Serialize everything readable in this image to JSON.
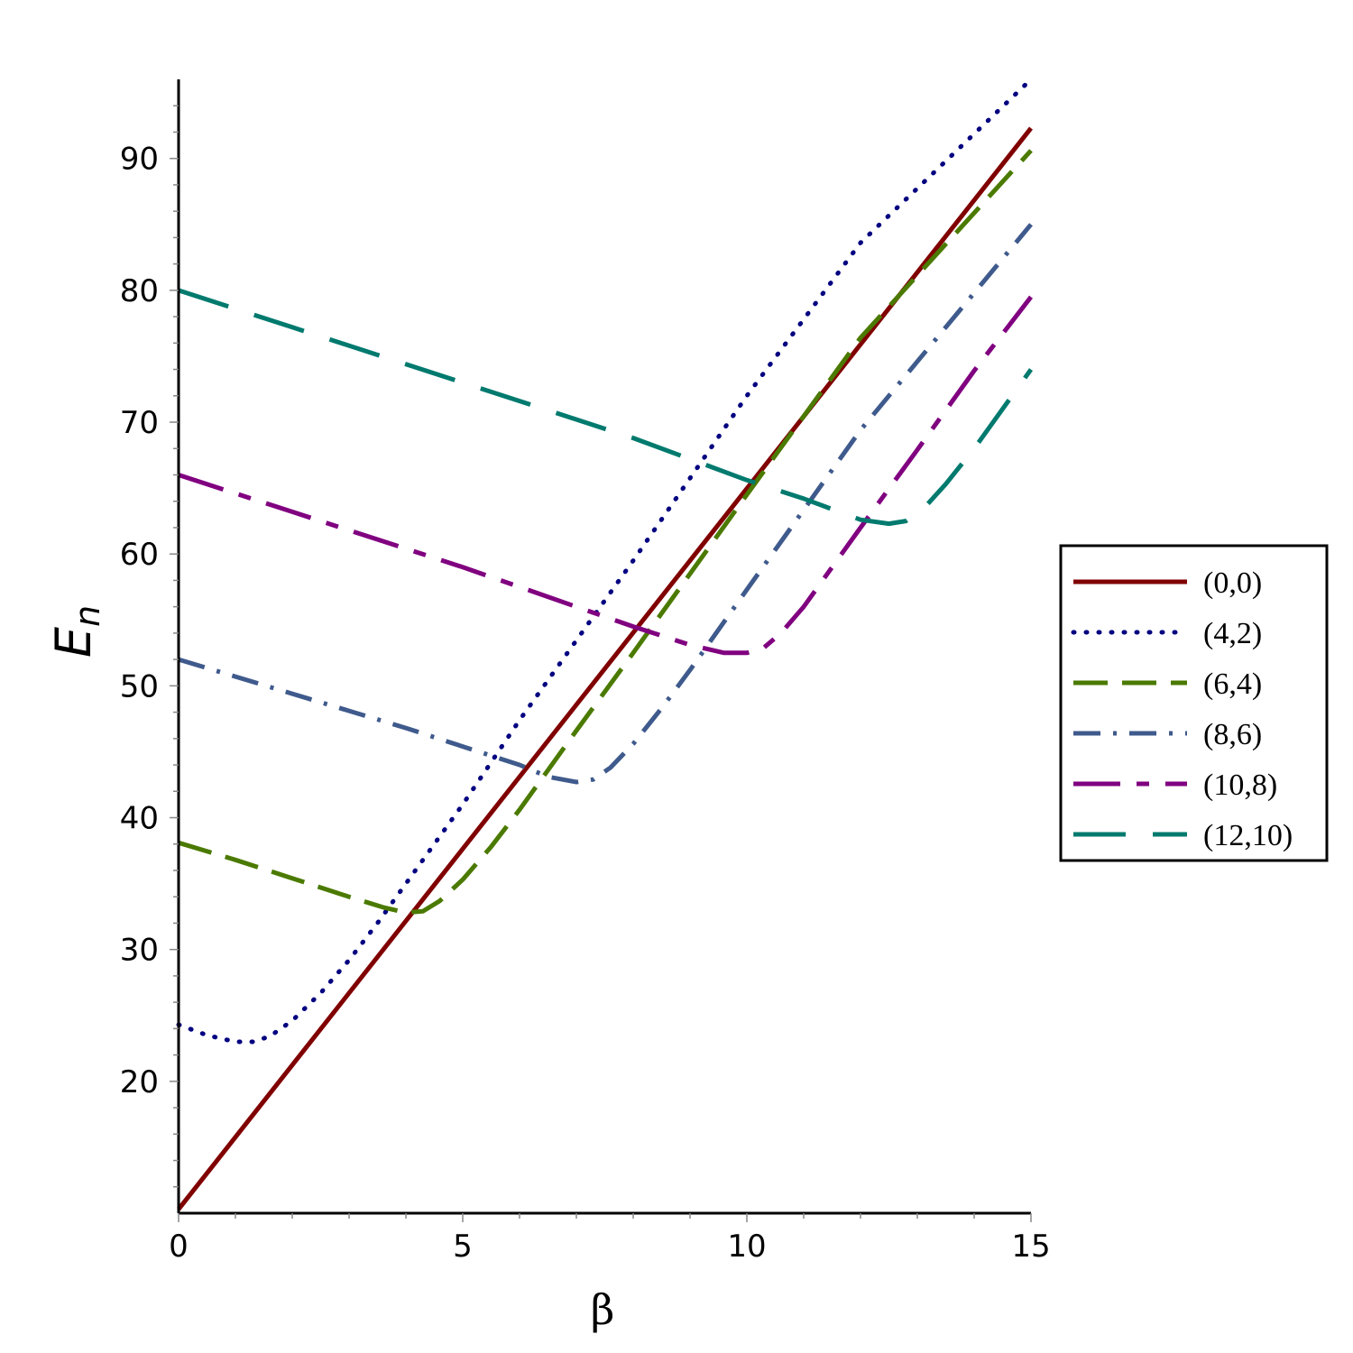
{
  "chart_data": {
    "type": "line",
    "title": "",
    "xlabel": "β",
    "ylabel": {
      "main": "E",
      "subscript": "n"
    },
    "xlim": [
      0,
      15
    ],
    "ylim": [
      10,
      96
    ],
    "xticks": [
      0,
      5,
      10,
      15
    ],
    "yticks": [
      20,
      30,
      40,
      50,
      60,
      70,
      80,
      90
    ],
    "grid": false,
    "legend_position": "right",
    "series": [
      {
        "name": "(0,0)",
        "color": "#800000",
        "dash": "solid",
        "points": [
          [
            0,
            10.3
          ],
          [
            15,
            92.3
          ]
        ]
      },
      {
        "name": "(4,2)",
        "color": "#000080",
        "dash": "dotted",
        "points": [
          [
            0,
            24.3
          ],
          [
            0.5,
            23.5
          ],
          [
            1.0,
            23.0
          ],
          [
            1.3,
            23.0
          ],
          [
            1.6,
            23.4
          ],
          [
            2.0,
            24.6
          ],
          [
            2.5,
            26.7
          ],
          [
            3.0,
            29.2
          ],
          [
            3.5,
            32.0
          ],
          [
            4.0,
            35.0
          ],
          [
            5.0,
            41.0
          ],
          [
            6.0,
            47.4
          ],
          [
            8.0,
            59.5
          ],
          [
            10.0,
            72.0
          ],
          [
            12.0,
            83.6
          ],
          [
            15.0,
            96.0
          ]
        ]
      },
      {
        "name": "(6,4)",
        "color": "#4B7A00",
        "dash": "long-dash",
        "points": [
          [
            0,
            38.1
          ],
          [
            1.0,
            36.8
          ],
          [
            2.0,
            35.4
          ],
          [
            3.0,
            34.0
          ],
          [
            3.6,
            33.2
          ],
          [
            4.0,
            32.8
          ],
          [
            4.3,
            32.9
          ],
          [
            4.6,
            33.7
          ],
          [
            5.0,
            35.3
          ],
          [
            5.5,
            37.8
          ],
          [
            6.0,
            40.6
          ],
          [
            7.0,
            46.6
          ],
          [
            8.0,
            52.5
          ],
          [
            10.0,
            64.5
          ],
          [
            12.0,
            76.4
          ],
          [
            15.0,
            90.6
          ]
        ]
      },
      {
        "name": "(8,6)",
        "color": "#3F5A8C",
        "dash": "dash-dot",
        "points": [
          [
            0,
            52.0
          ],
          [
            1.0,
            50.7
          ],
          [
            2.0,
            49.4
          ],
          [
            3.0,
            48.1
          ],
          [
            4.0,
            46.8
          ],
          [
            5.0,
            45.4
          ],
          [
            6.0,
            44.0
          ],
          [
            6.5,
            43.1
          ],
          [
            7.0,
            42.7
          ],
          [
            7.3,
            42.9
          ],
          [
            7.6,
            43.8
          ],
          [
            8.0,
            45.6
          ],
          [
            8.5,
            48.3
          ],
          [
            9.0,
            51.2
          ],
          [
            10.0,
            57.3
          ],
          [
            12.0,
            69.4
          ],
          [
            15.0,
            85.0
          ]
        ]
      },
      {
        "name": "(10,8)",
        "color": "#800080",
        "dash": "long-short",
        "points": [
          [
            0,
            66.0
          ],
          [
            1.0,
            64.6
          ],
          [
            2.0,
            63.2
          ],
          [
            3.0,
            61.8
          ],
          [
            4.0,
            60.4
          ],
          [
            5.0,
            59.0
          ],
          [
            6.0,
            57.5
          ],
          [
            7.0,
            56.0
          ],
          [
            8.0,
            54.5
          ],
          [
            9.0,
            53.1
          ],
          [
            9.6,
            52.5
          ],
          [
            10.0,
            52.5
          ],
          [
            10.3,
            52.9
          ],
          [
            10.6,
            54.0
          ],
          [
            11.0,
            56.0
          ],
          [
            11.5,
            59.0
          ],
          [
            12.0,
            62.0
          ],
          [
            13.0,
            67.9
          ],
          [
            14.0,
            73.9
          ],
          [
            15.0,
            79.5
          ]
        ]
      },
      {
        "name": "(12,10)",
        "color": "#007A6E",
        "dash": "very-long",
        "points": [
          [
            0,
            80.0
          ],
          [
            2.0,
            77.2
          ],
          [
            4.0,
            74.4
          ],
          [
            6.0,
            71.6
          ],
          [
            8.0,
            68.8
          ],
          [
            10.0,
            65.6
          ],
          [
            11.0,
            64.2
          ],
          [
            12.0,
            62.6
          ],
          [
            12.5,
            62.3
          ],
          [
            12.8,
            62.5
          ],
          [
            13.1,
            63.4
          ],
          [
            13.5,
            65.3
          ],
          [
            14.0,
            68.0
          ],
          [
            14.5,
            71.0
          ],
          [
            15.0,
            74.0
          ]
        ]
      }
    ]
  }
}
